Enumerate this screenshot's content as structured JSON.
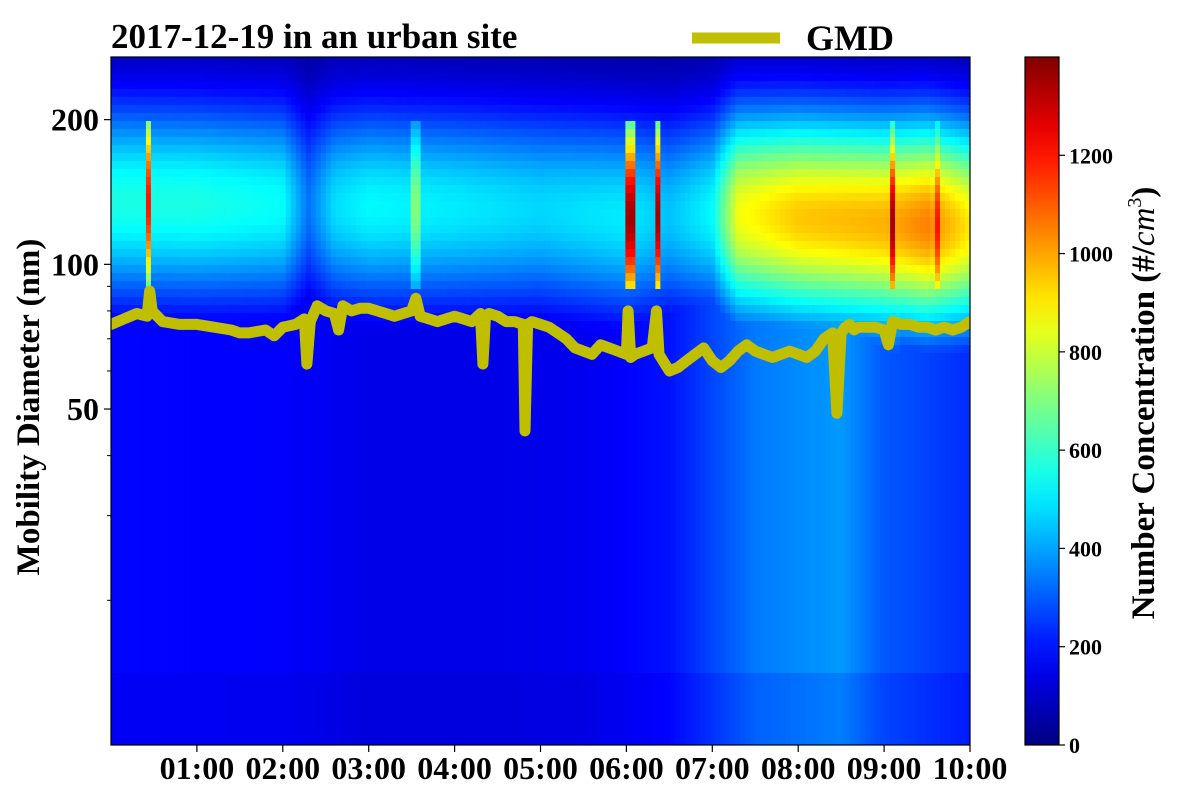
{
  "chart_data": {
    "type": "heatmap",
    "title": "2017-12-19 in an urban site",
    "ylabel": "Mobility Diameter (nm)",
    "colorbar_label": "Number Concentration (#/cm³)",
    "colorbar_label_base": "Number Concentration (#/",
    "colorbar_label_unit": "cm",
    "colorbar_label_exp": "3",
    "colorbar_label_close": ")",
    "colormap": "jet",
    "colorbar_range": [
      0,
      1400
    ],
    "colorbar_ticks": [
      {
        "value": 0,
        "label": "0"
      },
      {
        "value": 200,
        "label": "200"
      },
      {
        "value": 400,
        "label": "400"
      },
      {
        "value": 600,
        "label": "600"
      },
      {
        "value": 800,
        "label": "800"
      },
      {
        "value": 1000,
        "label": "1000"
      },
      {
        "value": 1200,
        "label": "1200"
      }
    ],
    "x_axis": {
      "unit": "time of day (hours)",
      "range": [
        0,
        10
      ],
      "ticks": [
        {
          "value": 1,
          "label": "01:00"
        },
        {
          "value": 2,
          "label": "02:00"
        },
        {
          "value": 3,
          "label": "03:00"
        },
        {
          "value": 4,
          "label": "04:00"
        },
        {
          "value": 5,
          "label": "05:00"
        },
        {
          "value": 6,
          "label": "06:00"
        },
        {
          "value": 7,
          "label": "07:00"
        },
        {
          "value": 8,
          "label": "08:00"
        },
        {
          "value": 9,
          "label": "09:00"
        },
        {
          "value": 10,
          "label": "10:00"
        }
      ]
    },
    "y_axis": {
      "scale": "log",
      "range": [
        10,
        270
      ],
      "ticks": [
        {
          "value": 50,
          "label": "50"
        },
        {
          "value": 100,
          "label": "100"
        },
        {
          "value": 200,
          "label": "200"
        }
      ],
      "minor_ticks": [
        20,
        30,
        40,
        60,
        70,
        80,
        90
      ]
    },
    "legend": {
      "position": "top",
      "entries": [
        {
          "label": "GMD",
          "color": "#bfbf00"
        }
      ]
    },
    "heatmap_profile": {
      "mode_diameter_nm": [
        {
          "x": 0,
          "d": 135
        },
        {
          "x": 5,
          "d": 130
        },
        {
          "x": 6,
          "d": 125
        },
        {
          "x": 7,
          "d": 128
        },
        {
          "x": 8,
          "d": 125
        },
        {
          "x": 9,
          "d": 122
        },
        {
          "x": 10,
          "d": 120
        }
      ],
      "mode_peak": [
        {
          "x": 0.0,
          "v": 560
        },
        {
          "x": 1.0,
          "v": 560
        },
        {
          "x": 2.0,
          "v": 530
        },
        {
          "x": 2.3,
          "v": 330
        },
        {
          "x": 2.6,
          "v": 480
        },
        {
          "x": 3.0,
          "v": 520
        },
        {
          "x": 4.0,
          "v": 500
        },
        {
          "x": 5.0,
          "v": 470
        },
        {
          "x": 6.0,
          "v": 500
        },
        {
          "x": 6.5,
          "v": 440
        },
        {
          "x": 7.0,
          "v": 520
        },
        {
          "x": 7.3,
          "v": 860
        },
        {
          "x": 8.0,
          "v": 950
        },
        {
          "x": 9.0,
          "v": 980
        },
        {
          "x": 9.5,
          "v": 1050
        },
        {
          "x": 10.0,
          "v": 900
        }
      ],
      "background_mid": [
        {
          "x": 0,
          "v": 200
        },
        {
          "x": 2,
          "v": 190
        },
        {
          "x": 3,
          "v": 160
        },
        {
          "x": 4.5,
          "v": 160
        },
        {
          "x": 5.5,
          "v": 170
        },
        {
          "x": 6.5,
          "v": 220
        },
        {
          "x": 7,
          "v": 300
        },
        {
          "x": 7.5,
          "v": 380
        },
        {
          "x": 8.5,
          "v": 430
        },
        {
          "x": 9,
          "v": 330
        },
        {
          "x": 10,
          "v": 260
        }
      ],
      "spikes": [
        {
          "x": 0.45,
          "v": 1200
        },
        {
          "x": 3.55,
          "v": 700
        },
        {
          "x": 6.05,
          "v": 1350
        },
        {
          "x": 6.38,
          "v": 1350
        },
        {
          "x": 9.1,
          "v": 1350
        },
        {
          "x": 9.6,
          "v": 1200
        }
      ]
    },
    "series": [
      {
        "name": "GMD",
        "color": "#bfbf00",
        "x": [
          0.0,
          0.15,
          0.3,
          0.42,
          0.45,
          0.48,
          0.6,
          0.8,
          1.0,
          1.2,
          1.4,
          1.5,
          1.6,
          1.8,
          1.9,
          2.0,
          2.15,
          2.25,
          2.28,
          2.32,
          2.4,
          2.5,
          2.6,
          2.65,
          2.7,
          2.8,
          2.9,
          3.0,
          3.1,
          3.2,
          3.3,
          3.4,
          3.5,
          3.55,
          3.6,
          3.7,
          3.8,
          3.9,
          4.0,
          4.1,
          4.2,
          4.3,
          4.33,
          4.36,
          4.4,
          4.5,
          4.6,
          4.7,
          4.8,
          4.82,
          4.85,
          4.9,
          5.0,
          5.1,
          5.2,
          5.3,
          5.4,
          5.5,
          5.6,
          5.7,
          5.8,
          5.9,
          6.0,
          6.02,
          6.05,
          6.1,
          6.2,
          6.3,
          6.35,
          6.38,
          6.45,
          6.5,
          6.6,
          6.7,
          6.8,
          6.9,
          7.0,
          7.1,
          7.2,
          7.3,
          7.4,
          7.5,
          7.6,
          7.7,
          7.8,
          7.9,
          8.0,
          8.1,
          8.2,
          8.3,
          8.4,
          8.45,
          8.5,
          8.55,
          8.6,
          8.65,
          8.7,
          8.8,
          8.9,
          9.0,
          9.05,
          9.1,
          9.2,
          9.3,
          9.4,
          9.5,
          9.6,
          9.7,
          9.8,
          9.9,
          10.0
        ],
        "y": [
          75,
          77,
          79,
          78,
          88,
          80,
          76,
          75,
          75,
          74,
          73,
          72,
          72,
          73,
          71,
          74,
          75,
          77,
          62,
          76,
          82,
          80,
          79,
          73,
          82,
          80,
          81,
          81,
          80,
          79,
          78,
          79,
          80,
          85,
          78,
          77,
          76,
          77,
          78,
          77,
          76,
          79,
          62,
          78,
          79,
          78,
          76,
          76,
          75,
          45,
          75,
          76,
          75,
          74,
          72,
          70,
          67,
          66,
          65,
          68,
          67,
          66,
          65,
          80,
          64,
          65,
          66,
          67,
          80,
          65,
          62,
          60,
          61,
          63,
          65,
          67,
          63,
          61,
          63,
          66,
          68,
          66,
          65,
          64,
          65,
          66,
          65,
          64,
          66,
          70,
          72,
          49,
          72,
          74,
          75,
          73,
          74,
          74,
          74,
          73,
          68,
          76,
          75,
          75,
          74,
          74,
          73,
          74,
          73,
          74,
          76
        ]
      }
    ]
  }
}
